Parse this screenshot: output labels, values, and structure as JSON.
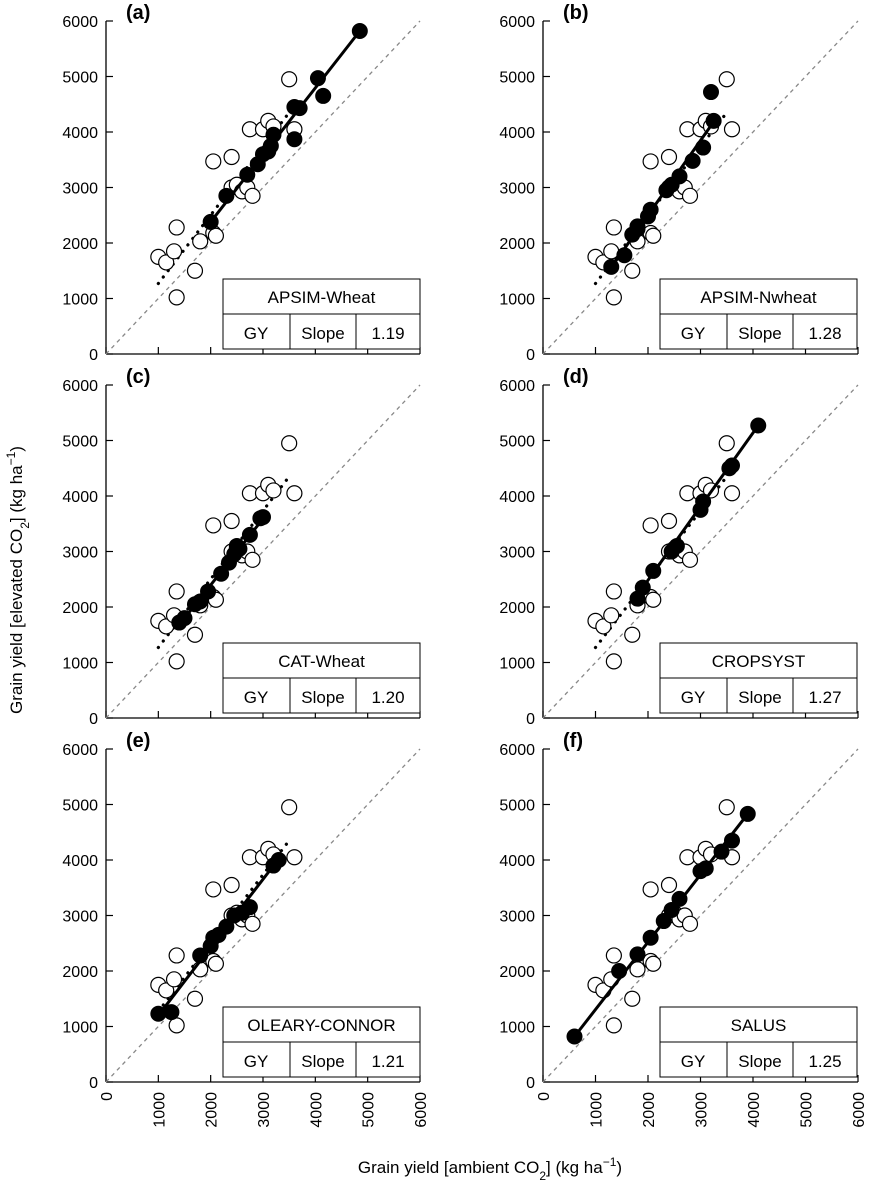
{
  "figure": {
    "xlabel": "Grain yield [ambient CO",
    "xlabel_sub": "2",
    "xlabel_tail": "] (kg ha",
    "xlabel_sup": "−1",
    "xlabel_end": ")",
    "ylabel": "Grain yield [elevated CO",
    "ylabel_sub": "2",
    "ylabel_tail": "] (kg ha",
    "ylabel_sup": "−1",
    "ylabel_end": ")",
    "table_col1": "GY",
    "table_col2": "Slope",
    "colors": {
      "axis": "#000000",
      "one_to_one": "#888888",
      "observed_fill": "#ffffff",
      "simulated_fill": "#000000"
    }
  },
  "chart_data": [
    {
      "type": "scatter",
      "panel": "(a)",
      "model": "APSIM-Wheat",
      "slope": "1.19",
      "xlim": [
        0,
        6000
      ],
      "ylim": [
        0,
        6000
      ],
      "xticks": [
        0,
        1000,
        2000,
        3000,
        4000,
        5000,
        6000
      ],
      "yticks": [
        0,
        1000,
        2000,
        3000,
        4000,
        5000,
        6000
      ],
      "observed": [
        [
          1000,
          1750
        ],
        [
          1150,
          1650
        ],
        [
          1300,
          1850
        ],
        [
          1350,
          2280
        ],
        [
          1350,
          1020
        ],
        [
          1700,
          1500
        ],
        [
          1800,
          2030
        ],
        [
          2050,
          2180
        ],
        [
          2100,
          2130
        ],
        [
          2050,
          3470
        ],
        [
          2400,
          3550
        ],
        [
          2400,
          3000
        ],
        [
          2500,
          3050
        ],
        [
          2600,
          2930
        ],
        [
          2700,
          3000
        ],
        [
          2800,
          2850
        ],
        [
          2750,
          4050
        ],
        [
          3000,
          4050
        ],
        [
          3100,
          4200
        ],
        [
          3200,
          4100
        ],
        [
          3500,
          4950
        ],
        [
          3600,
          4050
        ]
      ],
      "simulated": [
        [
          2000,
          2380
        ],
        [
          2300,
          2850
        ],
        [
          2700,
          3230
        ],
        [
          2900,
          3420
        ],
        [
          3000,
          3600
        ],
        [
          3100,
          3650
        ],
        [
          3150,
          3750
        ],
        [
          3200,
          3950
        ],
        [
          3600,
          4450
        ],
        [
          3700,
          4430
        ],
        [
          3600,
          3870
        ],
        [
          4050,
          4970
        ],
        [
          4150,
          4650
        ],
        [
          4850,
          5820
        ]
      ],
      "fit_simulated": [
        [
          2000,
          2380
        ],
        [
          4850,
          5820
        ]
      ],
      "fit_observed": [
        [
          1000,
          1270
        ],
        [
          3500,
          4350
        ]
      ],
      "one_to_one": [
        [
          0,
          0
        ],
        [
          6000,
          6000
        ]
      ]
    },
    {
      "type": "scatter",
      "panel": "(b)",
      "model": "APSIM-Nwheat",
      "slope": "1.28",
      "xlim": [
        0,
        6000
      ],
      "ylim": [
        0,
        6000
      ],
      "xticks": [
        0,
        1000,
        2000,
        3000,
        4000,
        5000,
        6000
      ],
      "yticks": [
        0,
        1000,
        2000,
        3000,
        4000,
        5000,
        6000
      ],
      "observed": [
        [
          1000,
          1750
        ],
        [
          1150,
          1650
        ],
        [
          1300,
          1850
        ],
        [
          1350,
          2280
        ],
        [
          1350,
          1020
        ],
        [
          1700,
          1500
        ],
        [
          1800,
          2030
        ],
        [
          2050,
          2180
        ],
        [
          2100,
          2130
        ],
        [
          2050,
          3470
        ],
        [
          2400,
          3550
        ],
        [
          2400,
          3000
        ],
        [
          2500,
          3050
        ],
        [
          2600,
          2930
        ],
        [
          2700,
          3000
        ],
        [
          2800,
          2850
        ],
        [
          2750,
          4050
        ],
        [
          3000,
          4050
        ],
        [
          3100,
          4200
        ],
        [
          3200,
          4100
        ],
        [
          3500,
          4950
        ],
        [
          3600,
          4050
        ]
      ],
      "simulated": [
        [
          1300,
          1570
        ],
        [
          1550,
          1780
        ],
        [
          1700,
          2150
        ],
        [
          1800,
          2300
        ],
        [
          1800,
          2250
        ],
        [
          2000,
          2480
        ],
        [
          2050,
          2600
        ],
        [
          2350,
          2950
        ],
        [
          2450,
          3050
        ],
        [
          2600,
          3200
        ],
        [
          2850,
          3480
        ],
        [
          3050,
          3720
        ],
        [
          3250,
          4200
        ],
        [
          3200,
          4720
        ]
      ],
      "fit_simulated": [
        [
          1300,
          1560
        ],
        [
          3300,
          4250
        ]
      ],
      "fit_observed": [
        [
          1000,
          1270
        ],
        [
          3500,
          4350
        ]
      ],
      "one_to_one": [
        [
          0,
          0
        ],
        [
          6000,
          6000
        ]
      ]
    },
    {
      "type": "scatter",
      "panel": "(c)",
      "model": "CAT-Wheat",
      "slope": "1.20",
      "xlim": [
        0,
        6000
      ],
      "ylim": [
        0,
        6000
      ],
      "xticks": [
        0,
        1000,
        2000,
        3000,
        4000,
        5000,
        6000
      ],
      "yticks": [
        0,
        1000,
        2000,
        3000,
        4000,
        5000,
        6000
      ],
      "observed": [
        [
          1000,
          1750
        ],
        [
          1150,
          1650
        ],
        [
          1300,
          1850
        ],
        [
          1350,
          2280
        ],
        [
          1350,
          1020
        ],
        [
          1700,
          1500
        ],
        [
          1800,
          2030
        ],
        [
          2050,
          2180
        ],
        [
          2100,
          2130
        ],
        [
          2050,
          3470
        ],
        [
          2400,
          3550
        ],
        [
          2400,
          3000
        ],
        [
          2500,
          3050
        ],
        [
          2600,
          2930
        ],
        [
          2700,
          3000
        ],
        [
          2800,
          2850
        ],
        [
          2750,
          4050
        ],
        [
          3000,
          4050
        ],
        [
          3100,
          4200
        ],
        [
          3200,
          4100
        ],
        [
          3500,
          4950
        ],
        [
          3600,
          4050
        ]
      ],
      "simulated": [
        [
          1400,
          1720
        ],
        [
          1500,
          1800
        ],
        [
          1700,
          2050
        ],
        [
          1800,
          2100
        ],
        [
          1950,
          2280
        ],
        [
          2200,
          2600
        ],
        [
          2350,
          2800
        ],
        [
          2450,
          2950
        ],
        [
          2550,
          3050
        ],
        [
          2750,
          3300
        ],
        [
          2950,
          3600
        ],
        [
          3000,
          3620
        ],
        [
          2500,
          3100
        ]
      ],
      "fit_simulated": [
        [
          1400,
          1680
        ],
        [
          3050,
          3650
        ]
      ],
      "fit_observed": [
        [
          1000,
          1270
        ],
        [
          3500,
          4350
        ]
      ],
      "one_to_one": [
        [
          0,
          0
        ],
        [
          6000,
          6000
        ]
      ]
    },
    {
      "type": "scatter",
      "panel": "(d)",
      "model": "CROPSYST",
      "slope": "1.27",
      "xlim": [
        0,
        6000
      ],
      "ylim": [
        0,
        6000
      ],
      "xticks": [
        0,
        1000,
        2000,
        3000,
        4000,
        5000,
        6000
      ],
      "yticks": [
        0,
        1000,
        2000,
        3000,
        4000,
        5000,
        6000
      ],
      "observed": [
        [
          1000,
          1750
        ],
        [
          1150,
          1650
        ],
        [
          1300,
          1850
        ],
        [
          1350,
          2280
        ],
        [
          1350,
          1020
        ],
        [
          1700,
          1500
        ],
        [
          1800,
          2030
        ],
        [
          2050,
          2180
        ],
        [
          2100,
          2130
        ],
        [
          2050,
          3470
        ],
        [
          2400,
          3550
        ],
        [
          2400,
          3000
        ],
        [
          2500,
          3050
        ],
        [
          2600,
          2930
        ],
        [
          2700,
          3000
        ],
        [
          2800,
          2850
        ],
        [
          2750,
          4050
        ],
        [
          3000,
          4050
        ],
        [
          3100,
          4200
        ],
        [
          3200,
          4100
        ],
        [
          3500,
          4950
        ],
        [
          3600,
          4050
        ]
      ],
      "simulated": [
        [
          1800,
          2150
        ],
        [
          1900,
          2350
        ],
        [
          2100,
          2650
        ],
        [
          2450,
          3000
        ],
        [
          2550,
          3100
        ],
        [
          3000,
          3750
        ],
        [
          3050,
          3900
        ],
        [
          3550,
          4500
        ],
        [
          3600,
          4550
        ],
        [
          4100,
          5270
        ]
      ],
      "fit_simulated": [
        [
          1750,
          2150
        ],
        [
          4100,
          5270
        ]
      ],
      "fit_observed": [
        [
          1000,
          1270
        ],
        [
          3500,
          4350
        ]
      ],
      "one_to_one": [
        [
          0,
          0
        ],
        [
          6000,
          6000
        ]
      ]
    },
    {
      "type": "scatter",
      "panel": "(e)",
      "model": "OLEARY-CONNOR",
      "slope": "1.21",
      "xlim": [
        0,
        6000
      ],
      "ylim": [
        0,
        6000
      ],
      "xticks": [
        0,
        1000,
        2000,
        3000,
        4000,
        5000,
        6000
      ],
      "yticks": [
        0,
        1000,
        2000,
        3000,
        4000,
        5000,
        6000
      ],
      "observed": [
        [
          1000,
          1750
        ],
        [
          1150,
          1650
        ],
        [
          1300,
          1850
        ],
        [
          1350,
          2280
        ],
        [
          1350,
          1020
        ],
        [
          1700,
          1500
        ],
        [
          1800,
          2030
        ],
        [
          2050,
          2180
        ],
        [
          2100,
          2130
        ],
        [
          2050,
          3470
        ],
        [
          2400,
          3550
        ],
        [
          2400,
          3000
        ],
        [
          2500,
          3050
        ],
        [
          2600,
          2930
        ],
        [
          2700,
          3000
        ],
        [
          2800,
          2850
        ],
        [
          2750,
          4050
        ],
        [
          3000,
          4050
        ],
        [
          3100,
          4200
        ],
        [
          3200,
          4100
        ],
        [
          3500,
          4950
        ],
        [
          3600,
          4050
        ]
      ],
      "simulated": [
        [
          1000,
          1230
        ],
        [
          1250,
          1260
        ],
        [
          1800,
          2280
        ],
        [
          2000,
          2450
        ],
        [
          2050,
          2600
        ],
        [
          2150,
          2650
        ],
        [
          2300,
          2800
        ],
        [
          2450,
          3000
        ],
        [
          2600,
          3050
        ],
        [
          2750,
          3150
        ],
        [
          3200,
          3900
        ],
        [
          3300,
          4000
        ]
      ],
      "fit_simulated": [
        [
          1000,
          1200
        ],
        [
          3300,
          4020
        ]
      ],
      "fit_observed": [
        [
          1000,
          1270
        ],
        [
          3500,
          4350
        ]
      ],
      "one_to_one": [
        [
          0,
          0
        ],
        [
          6000,
          6000
        ]
      ]
    },
    {
      "type": "scatter",
      "panel": "(f)",
      "model": "SALUS",
      "slope": "1.25",
      "xlim": [
        0,
        6000
      ],
      "ylim": [
        0,
        6000
      ],
      "xticks": [
        0,
        1000,
        2000,
        3000,
        4000,
        5000,
        6000
      ],
      "yticks": [
        0,
        1000,
        2000,
        3000,
        4000,
        5000,
        6000
      ],
      "observed": [
        [
          1000,
          1750
        ],
        [
          1150,
          1650
        ],
        [
          1300,
          1850
        ],
        [
          1350,
          2280
        ],
        [
          1350,
          1020
        ],
        [
          1700,
          1500
        ],
        [
          1800,
          2030
        ],
        [
          2050,
          2180
        ],
        [
          2100,
          2130
        ],
        [
          2050,
          3470
        ],
        [
          2400,
          3550
        ],
        [
          2400,
          3000
        ],
        [
          2500,
          3050
        ],
        [
          2600,
          2930
        ],
        [
          2700,
          3000
        ],
        [
          2800,
          2850
        ],
        [
          2750,
          4050
        ],
        [
          3000,
          4050
        ],
        [
          3100,
          4200
        ],
        [
          3200,
          4100
        ],
        [
          3500,
          4950
        ],
        [
          3600,
          4050
        ]
      ],
      "simulated": [
        [
          600,
          820
        ],
        [
          1450,
          2000
        ],
        [
          1800,
          2300
        ],
        [
          2050,
          2600
        ],
        [
          2300,
          2900
        ],
        [
          2450,
          3100
        ],
        [
          2600,
          3300
        ],
        [
          3000,
          3800
        ],
        [
          3100,
          3850
        ],
        [
          3400,
          4150
        ],
        [
          3600,
          4350
        ],
        [
          3900,
          4830
        ]
      ],
      "fit_simulated": [
        [
          600,
          820
        ],
        [
          3900,
          4830
        ]
      ],
      "fit_observed": [],
      "one_to_one": [
        [
          0,
          0
        ],
        [
          6000,
          6000
        ]
      ]
    }
  ]
}
